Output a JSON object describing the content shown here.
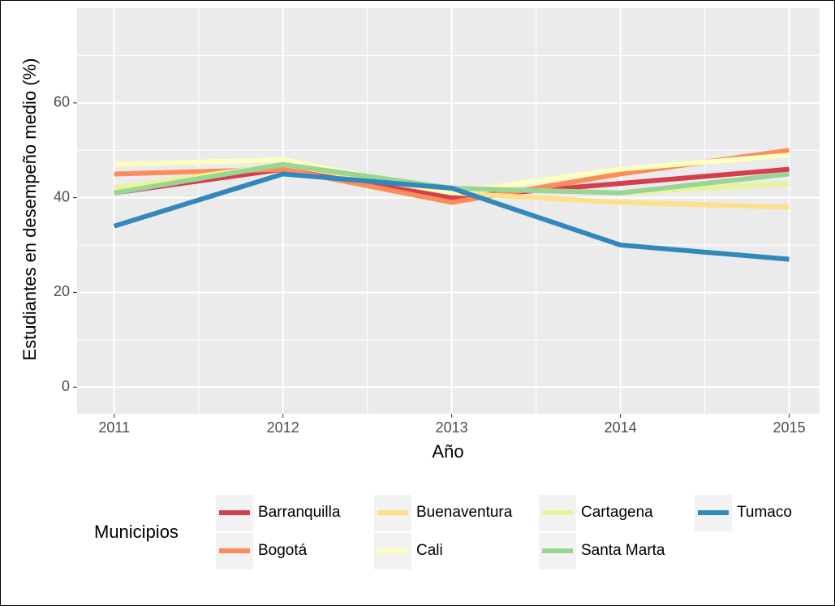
{
  "chart_data": {
    "type": "line",
    "x_label": "Año",
    "y_label": "Estudiantes en desempeño medio (%)",
    "x": [
      2011,
      2012,
      2013,
      2014,
      2015
    ],
    "xlim": [
      2010.78,
      2015.18
    ],
    "xticks": [
      2011,
      2012,
      2013,
      2014,
      2015
    ],
    "ylim": [
      -5.6,
      80
    ],
    "yticks": [
      0,
      20,
      40,
      60
    ],
    "grid": true,
    "legend_position": "bottom",
    "legend_title": "Municipios",
    "series": [
      {
        "name": "Barranquilla",
        "color": "#d53e4f",
        "values": [
          41,
          46,
          40,
          43,
          46
        ]
      },
      {
        "name": "Bogotá",
        "color": "#fc8d59",
        "values": [
          45,
          46,
          39,
          45,
          50
        ]
      },
      {
        "name": "Buenaventura",
        "color": "#fee08b",
        "values": [
          42,
          47,
          41,
          39,
          38
        ]
      },
      {
        "name": "Cali",
        "color": "#ffffbf",
        "values": [
          47,
          48,
          41,
          46,
          49
        ]
      },
      {
        "name": "Cartagena",
        "color": "#e6f598",
        "values": [
          42,
          47,
          42,
          41,
          43
        ]
      },
      {
        "name": "Santa Marta",
        "color": "#99d594",
        "values": [
          41,
          47,
          42,
          41,
          45
        ]
      },
      {
        "name": "Tumaco",
        "color": "#3288bd",
        "values": [
          34,
          45,
          42,
          30,
          27
        ]
      }
    ]
  }
}
